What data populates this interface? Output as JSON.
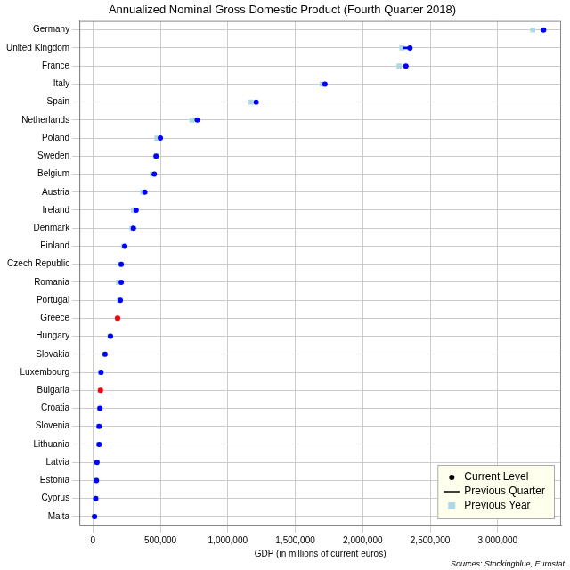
{
  "chart_data": {
    "type": "dot",
    "orientation": "horizontal",
    "title": "Annualized Nominal Gross Domestic Product (Fourth Quarter 2018)",
    "x_label": "GDP (in millions of current euros)",
    "source": "Sources: Stockingblue, Eurostat",
    "categories": [
      "Germany",
      "United Kingdom",
      "France",
      "Italy",
      "Spain",
      "Netherlands",
      "Poland",
      "Sweden",
      "Belgium",
      "Austria",
      "Ireland",
      "Denmark",
      "Finland",
      "Czech Republic",
      "Romania",
      "Portugal",
      "Greece",
      "Hungary",
      "Slovakia",
      "Luxembourg",
      "Bulgaria",
      "Croatia",
      "Slovenia",
      "Lithuania",
      "Latvia",
      "Estonia",
      "Cyprus",
      "Malta"
    ],
    "series": [
      {
        "name": "Current Level",
        "type": "scatter",
        "marker": "circle",
        "color": "#000000",
        "colors": [
          "#0000ff",
          "#0000ff",
          "#0000ff",
          "#0000ff",
          "#0000ff",
          "#0000ff",
          "#0000ff",
          "#0000ff",
          "#0000ff",
          "#0000ff",
          "#0000ff",
          "#0000ff",
          "#0000ff",
          "#0000ff",
          "#0000ff",
          "#0000ff",
          "#ff0000",
          "#0000ff",
          "#0000ff",
          "#0000ff",
          "#ff0000",
          "#0000ff",
          "#0000ff",
          "#0000ff",
          "#0000ff",
          "#0000ff",
          "#0000ff",
          "#0000ff"
        ],
        "values": [
          3340000,
          2350000,
          2320000,
          1720000,
          1210000,
          773000,
          500000,
          468000,
          455000,
          385000,
          320000,
          300000,
          236000,
          210000,
          210000,
          203000,
          183000,
          130000,
          90000,
          60000,
          56000,
          52000,
          46000,
          46000,
          30000,
          26000,
          21000,
          12000
        ]
      },
      {
        "name": "Previous Quarter",
        "type": "line",
        "line_style": "solid",
        "color": "#000000",
        "values": [
          3320000,
          2300000,
          2310000,
          1710000,
          1200000,
          765000,
          495000,
          470000,
          450000,
          380000,
          315000,
          297000,
          234000,
          207000,
          205000,
          200000,
          185000,
          128000,
          89000,
          59000,
          57000,
          51000,
          45000,
          45000,
          29000,
          25500,
          20500,
          11800
        ]
      },
      {
        "name": "Previous Year",
        "type": "scatter",
        "marker": "square",
        "color": "#add8e6",
        "values": [
          3260000,
          2290000,
          2270000,
          1700000,
          1170000,
          734000,
          474000,
          470000,
          440000,
          370000,
          300000,
          290000,
          227000,
          200000,
          190000,
          195000,
          183000,
          125000,
          86000,
          58000,
          53000,
          49000,
          43000,
          43000,
          27000,
          24000,
          20000,
          11000
        ]
      }
    ],
    "xlim": [
      -100000,
      3470000
    ],
    "xticks": [
      0,
      {
        "value": 500000,
        "label": "500,000"
      },
      {
        "value": 1000000,
        "label": "1,000,000"
      },
      {
        "value": 1500000,
        "label": "1,500,000"
      },
      {
        "value": 2000000,
        "label": "2,000,000"
      },
      {
        "value": 2500000,
        "label": "2,500,000"
      },
      {
        "value": 3000000,
        "label": "3,000,000"
      }
    ],
    "grid": true,
    "legend": "bottom-right"
  }
}
